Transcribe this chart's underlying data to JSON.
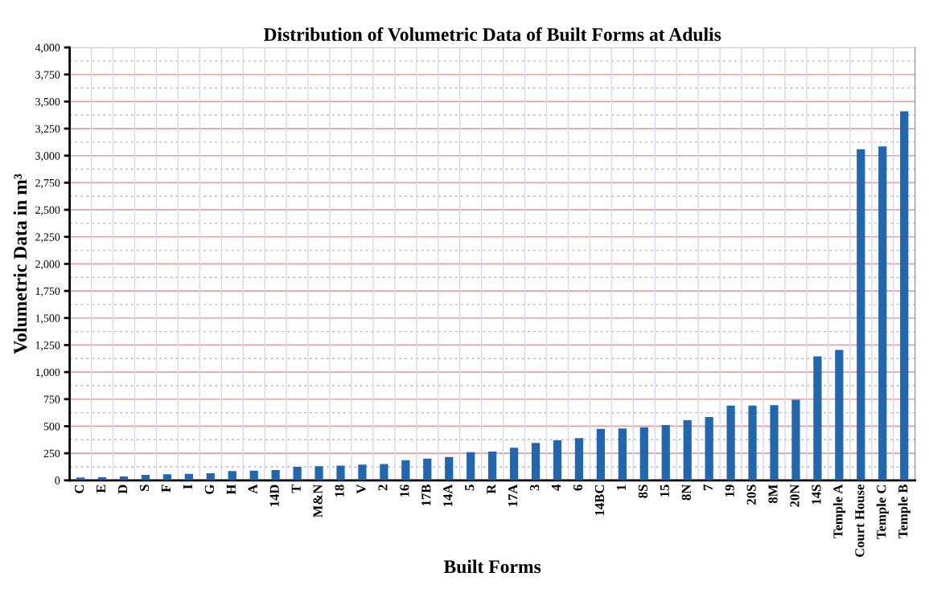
{
  "chart_data": {
    "type": "bar",
    "title": "Distribution of Volumetric Data of Built Forms at Adulis",
    "xlabel": "Built Forms",
    "ylabel": "Volumetric Data in m³",
    "categories": [
      "C",
      "E",
      "D",
      "S",
      "F",
      "I",
      "G",
      "H",
      "A",
      "14D",
      "T",
      "M&N",
      "18",
      "V",
      "2",
      "16",
      "17B",
      "14A",
      "5",
      "R",
      "17A",
      "3",
      "4",
      "6",
      "14BC",
      "1",
      "8S",
      "15",
      "8N",
      "7",
      "19",
      "20S",
      "8M",
      "20N",
      "14S",
      "Temple A",
      "Court House",
      "Temple C",
      "Temple B"
    ],
    "values": [
      27,
      28,
      35,
      50,
      55,
      60,
      65,
      85,
      90,
      95,
      125,
      130,
      135,
      145,
      150,
      185,
      200,
      215,
      260,
      265,
      300,
      345,
      370,
      390,
      475,
      480,
      490,
      510,
      555,
      585,
      690,
      690,
      695,
      745,
      1145,
      1205,
      3060,
      3085,
      3410
    ],
    "color": "#2266b0",
    "ylim": [
      0,
      4000
    ],
    "yticks": [
      {
        "value": 0,
        "label": "0"
      },
      {
        "value": 250,
        "label": "250"
      },
      {
        "value": 500,
        "label": "500"
      },
      {
        "value": 750,
        "label": "750"
      },
      {
        "value": 1000,
        "label": "1,000"
      },
      {
        "value": 1250,
        "label": "1,250"
      },
      {
        "value": 1500,
        "label": "1,500"
      },
      {
        "value": 1750,
        "label": "1,750"
      },
      {
        "value": 2000,
        "label": "2,000"
      },
      {
        "value": 2250,
        "label": "2,250"
      },
      {
        "value": 2500,
        "label": "2,500"
      },
      {
        "value": 2750,
        "label": "2,750"
      },
      {
        "value": 3000,
        "label": "3,000"
      },
      {
        "value": 3250,
        "label": "3,250"
      },
      {
        "value": 3500,
        "label": "3,500"
      },
      {
        "value": 3750,
        "label": "3,750"
      },
      {
        "value": 4000,
        "label": "4,000"
      }
    ],
    "grid": true
  }
}
